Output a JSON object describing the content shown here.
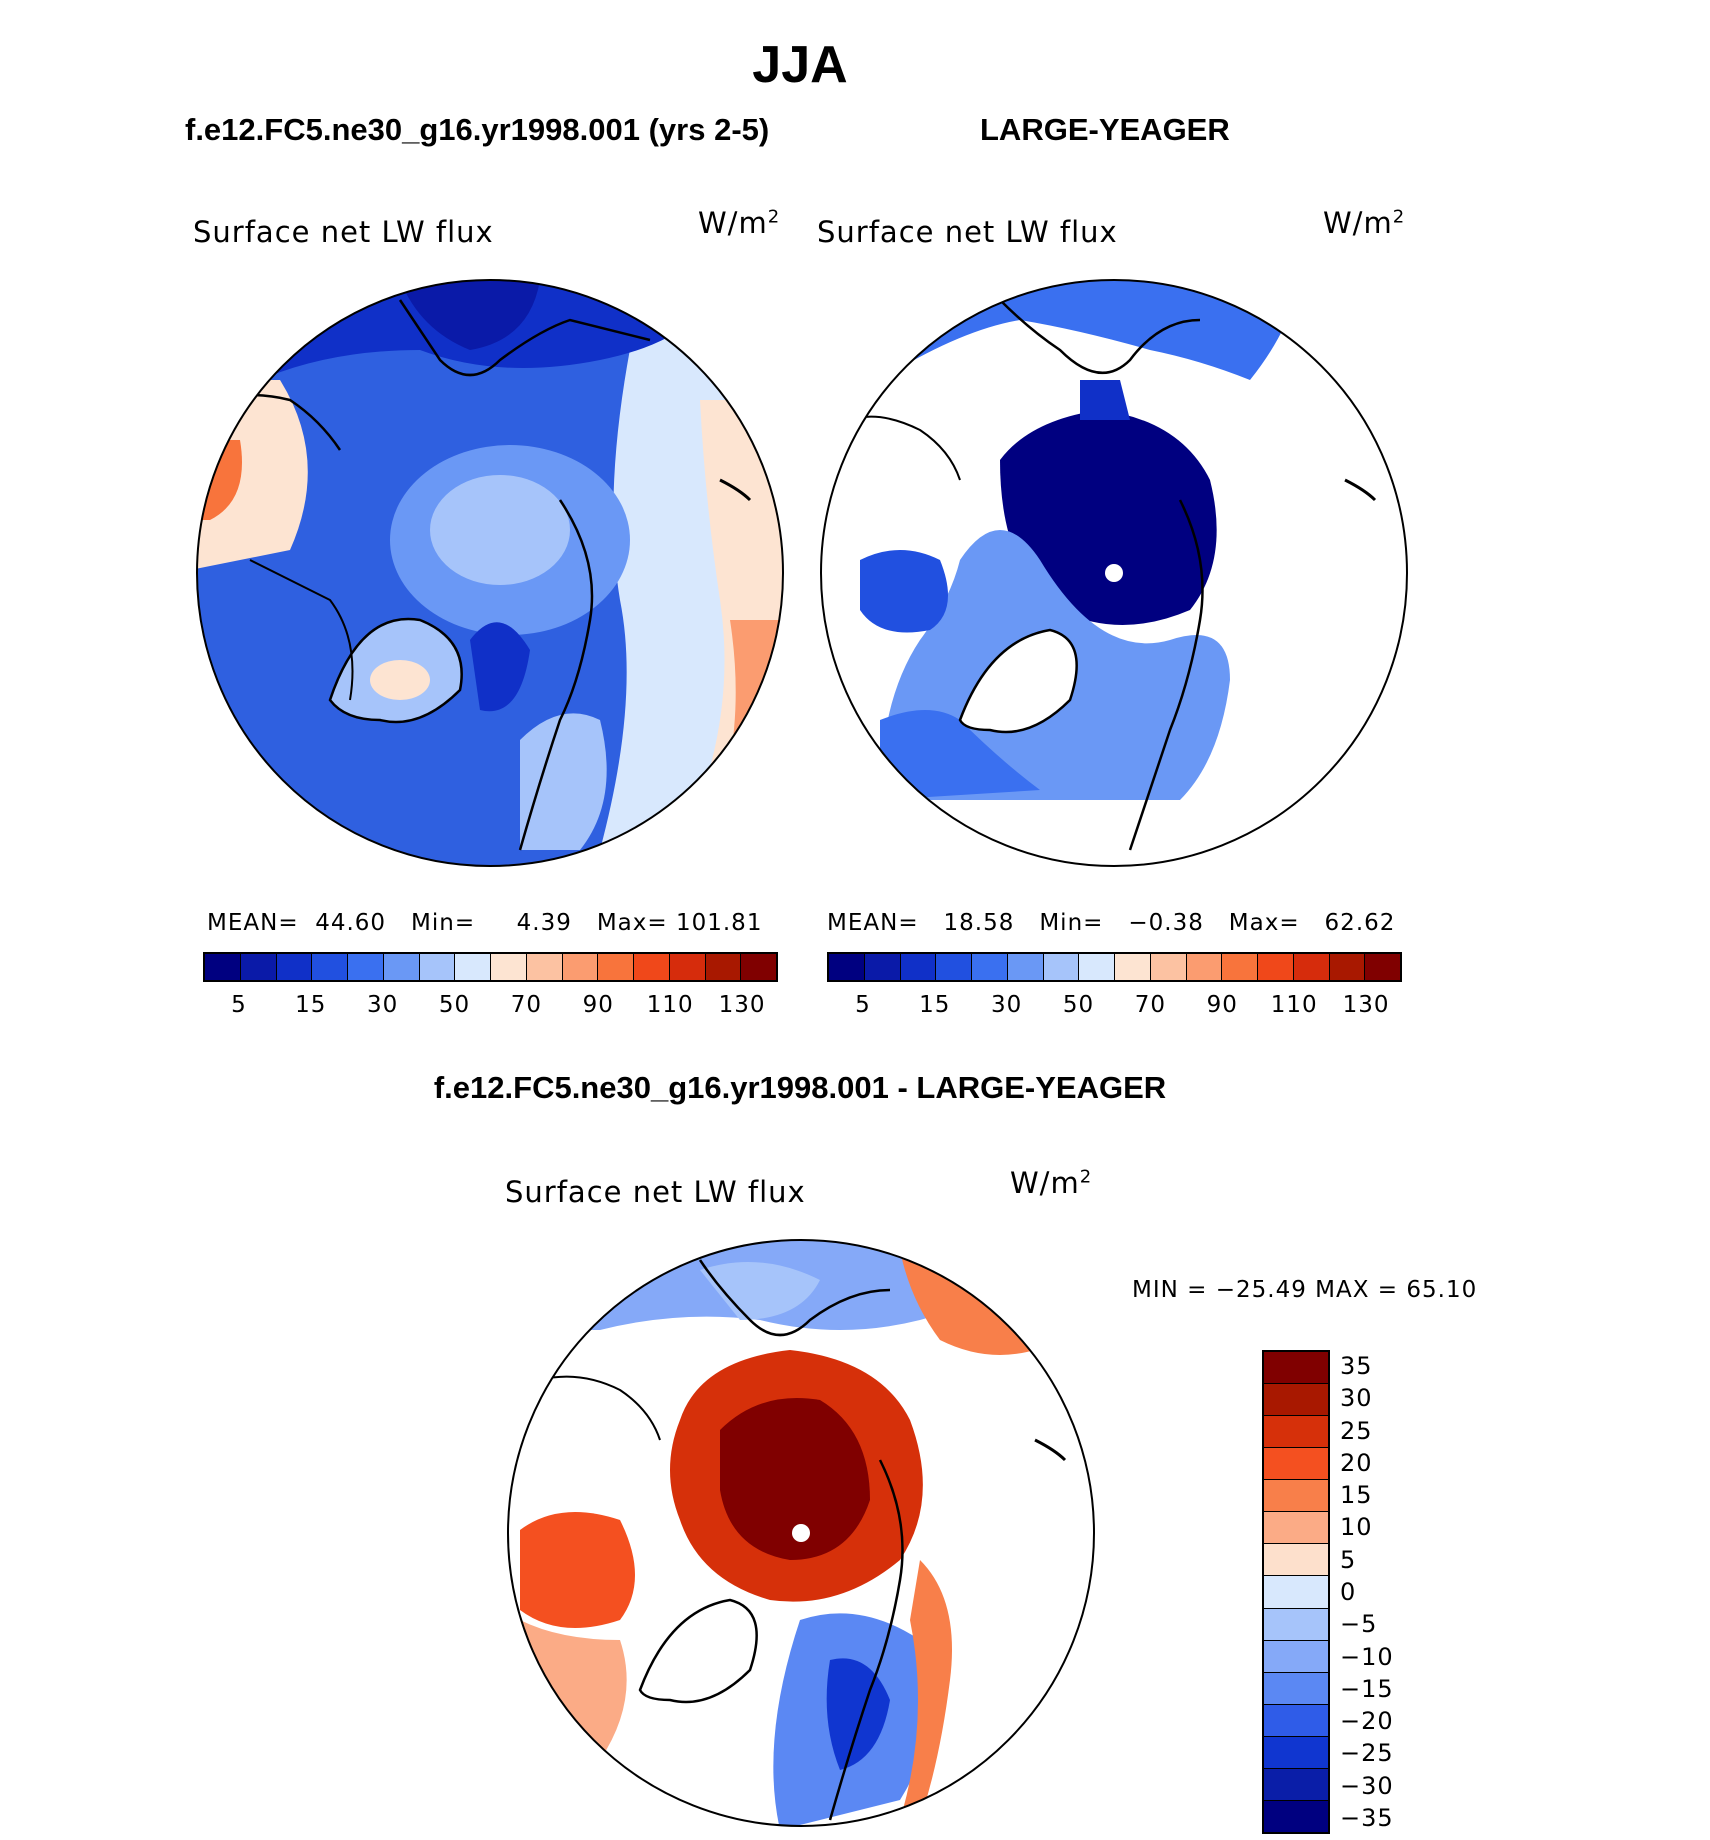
{
  "season": "JJA",
  "panels": {
    "left": {
      "case": "f.e12.FC5.ne30_g16.yr1998.001 (yrs 2-5)",
      "variable": "Surface net LW flux",
      "units": "W/m",
      "units_exp": "2",
      "mean_label": "MEAN=",
      "mean": "44.60",
      "min_label": "Min=",
      "min": "4.39",
      "max_label": "Max=",
      "max": "101.81"
    },
    "right": {
      "case": "LARGE-YEAGER",
      "variable": "Surface net LW flux",
      "units": "W/m",
      "units_exp": "2",
      "mean_label": "MEAN=",
      "mean": "18.58",
      "min_label": "Min=",
      "min": "−0.38",
      "max_label": "Max=",
      "max": "62.62"
    },
    "diff": {
      "case": "f.e12.FC5.ne30_g16.yr1998.001 - LARGE-YEAGER",
      "variable": "Surface net LW flux",
      "units": "W/m",
      "units_exp": "2",
      "minmax": "MIN = −25.49  MAX =   65.10"
    }
  },
  "colorbar_top": {
    "colors": [
      "#000080",
      "#0a1aa8",
      "#1030c8",
      "#2150e0",
      "#3a70f0",
      "#6a98f5",
      "#a6c4fa",
      "#d8e8fd",
      "#fde4d2",
      "#fcc2a2",
      "#fb9c70",
      "#f8743c",
      "#f0481a",
      "#d62c0c",
      "#a81800",
      "#800000"
    ],
    "labels": [
      "5",
      "15",
      "30",
      "50",
      "70",
      "90",
      "110",
      "130"
    ]
  },
  "colorbar_diff": {
    "colors": [
      "#800000",
      "#a81800",
      "#d6300a",
      "#f45020",
      "#f87f4a",
      "#fbab86",
      "#fde0cc",
      "#d8e8fd",
      "#a6c4fa",
      "#85a9f8",
      "#5b88f3",
      "#2f5ce8",
      "#1036d0",
      "#0a1ea8",
      "#000080"
    ],
    "labels": [
      "35",
      "30",
      "25",
      "20",
      "15",
      "10",
      "5",
      "0",
      "−5",
      "−10",
      "−15",
      "−20",
      "−25",
      "−30",
      "−35"
    ]
  }
}
